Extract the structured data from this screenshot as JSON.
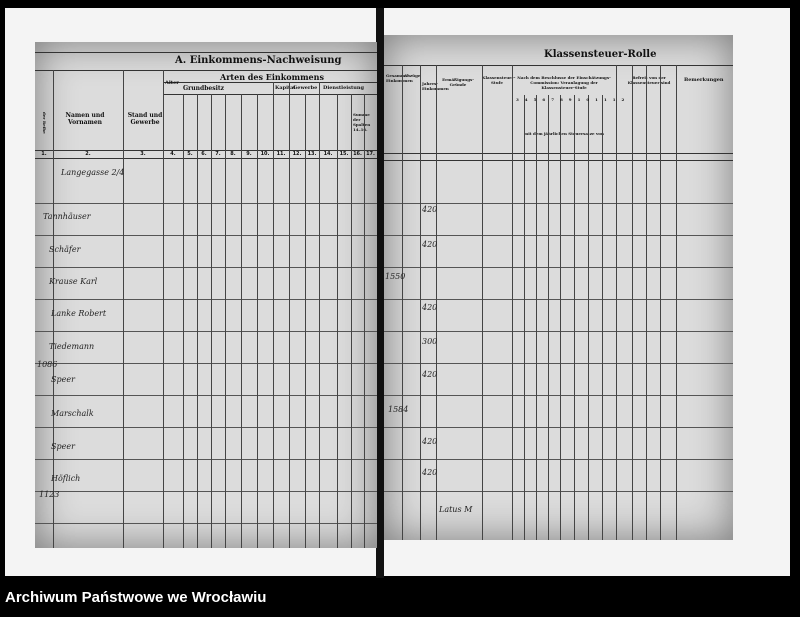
{
  "left_page": {
    "title": "A. Einkommens-Nachweisung",
    "group_header": "Arten des Einkommens",
    "columns": {
      "number": "der Reihe",
      "names": "Namen und Vornamen",
      "status": "Stand und Gewerbe",
      "age": "Alter",
      "land": "Grundbesitz",
      "capital": "Kapital",
      "trade": "Gewerbe",
      "service": "Dienstleistung",
      "sum": "Summe der Spalten 14–16."
    },
    "column_numbers": [
      "1.",
      "2.",
      "3.",
      "4.",
      "5.",
      "6.",
      "7.",
      "8.",
      "9.",
      "10.",
      "11.",
      "12.",
      "13.",
      "14.",
      "15.",
      "16.",
      "17."
    ],
    "entries": [
      {
        "name": "Langegasse 2/4",
        "value": ""
      },
      {
        "name": "Tannhäuser",
        "value": "420"
      },
      {
        "name": "Schäfer",
        "value": "420"
      },
      {
        "name": "Krause Karl",
        "value": "1550"
      },
      {
        "name": "Lanke Robert",
        "value": "420"
      },
      {
        "name": "Tiedemann",
        "value": "300"
      },
      {
        "name": "Speer",
        "value": "420"
      },
      {
        "name": "Marschalk",
        "value": "1584"
      },
      {
        "name": "Speer",
        "value": "420"
      },
      {
        "name": "Höflich",
        "value": "420"
      }
    ],
    "margin_notes": [
      "1086",
      "1123"
    ]
  },
  "right_page": {
    "title": "Klassensteuer-Rolle",
    "columns": {
      "total": "Gesammt-Einkommen",
      "deductions": "Abzüge",
      "income": "Jahres-Einkommen",
      "reductions": "Ermäßigungs-Gründe",
      "class": "Klassensteuer-Stufe",
      "assessment": "Nach dem Beschlusse der Einschätzungs-Commission: Veranlagung der Klassensteuer-Stufe",
      "yearly": "mit dem jährlichen Steuersatze von",
      "exempt": "Befreit von der Klassensteuer sind",
      "remarks": "Bemerkungen"
    },
    "stufen": [
      "3",
      "4",
      "5",
      "6",
      "7",
      "8",
      "9",
      "10",
      "11",
      "12"
    ],
    "total_label": "Latus M"
  },
  "footer": {
    "archive": "Archiwum Państwowe we Wrocławiu"
  }
}
